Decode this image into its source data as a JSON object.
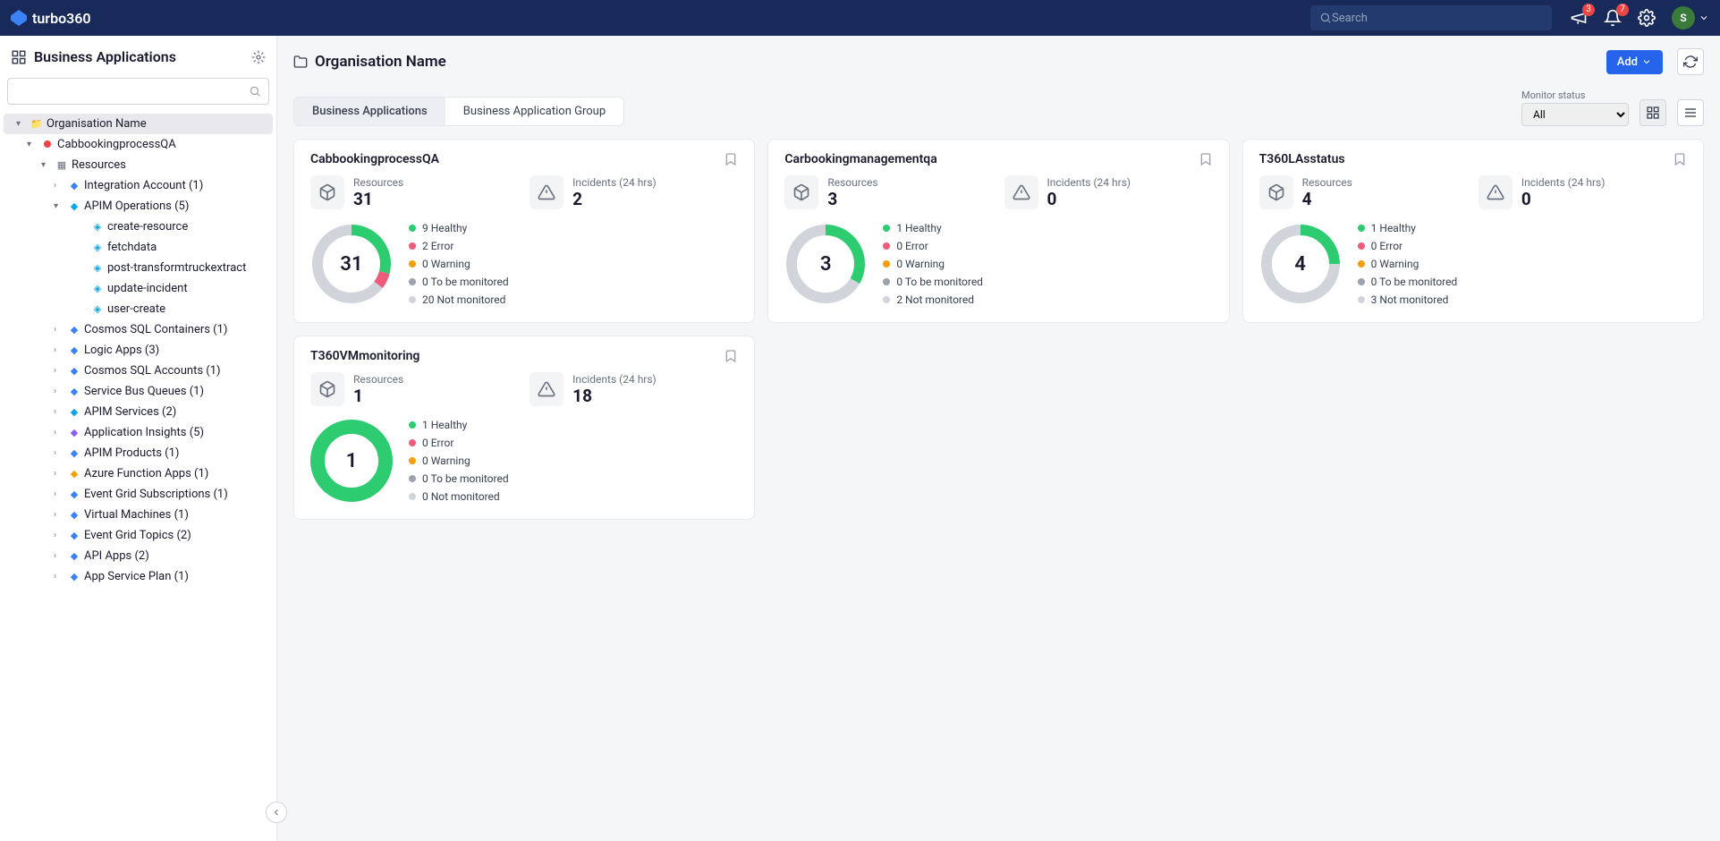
{
  "brand": "turbo360",
  "header": {
    "search_placeholder": "Search",
    "announce_badge": "3",
    "notif_badge": "7",
    "avatar_letter": "S"
  },
  "sidebar": {
    "title": "Business Applications",
    "org": "Organisation Name",
    "app": "CabbookingprocessQA",
    "resources_label": "Resources",
    "items": [
      {
        "label": "Integration Account (1)",
        "icon_color": "#3b82f6"
      },
      {
        "label": "APIM Operations (5)",
        "icon_color": "#0ea5e9",
        "expanded": true,
        "children": [
          {
            "label": "create-resource"
          },
          {
            "label": "fetchdata"
          },
          {
            "label": "post-transformtruckextract"
          },
          {
            "label": "update-incident"
          },
          {
            "label": "user-create"
          }
        ]
      },
      {
        "label": "Cosmos SQL Containers (1)",
        "icon_color": "#3b82f6"
      },
      {
        "label": "Logic Apps (3)",
        "icon_color": "#3b82f6"
      },
      {
        "label": "Cosmos SQL Accounts (1)",
        "icon_color": "#3b82f6"
      },
      {
        "label": "Service Bus Queues (1)",
        "icon_color": "#3b82f6"
      },
      {
        "label": "APIM Services (2)",
        "icon_color": "#0ea5e9"
      },
      {
        "label": "Application Insights (5)",
        "icon_color": "#8b5cf6"
      },
      {
        "label": "APIM Products (1)",
        "icon_color": "#3b82f6"
      },
      {
        "label": "Azure Function Apps (1)",
        "icon_color": "#f59e0b"
      },
      {
        "label": "Event Grid Subscriptions (1)",
        "icon_color": "#3b82f6"
      },
      {
        "label": "Virtual Machines (1)",
        "icon_color": "#3b82f6"
      },
      {
        "label": "Event Grid Topics (2)",
        "icon_color": "#3b82f6"
      },
      {
        "label": "API Apps (2)",
        "icon_color": "#3b82f6"
      },
      {
        "label": "App Service Plan (1)",
        "icon_color": "#3b82f6"
      }
    ]
  },
  "page": {
    "title": "Organisation Name",
    "add_label": "Add",
    "tabs": [
      {
        "label": "Business Applications",
        "active": true
      },
      {
        "label": "Business Application Group",
        "active": false
      }
    ],
    "monitor_status_label": "Monitor status",
    "monitor_status_value": "All"
  },
  "status_colors": {
    "healthy": "#2ecc71",
    "error": "#ef5b7a",
    "warning": "#f59e0b",
    "tobemonitored": "#9ca3af",
    "notmonitored": "#d1d5db"
  },
  "cards": [
    {
      "title": "CabbookingprocessQA",
      "resources_label": "Resources",
      "resources": 31,
      "incidents_label": "Incidents (24 hrs)",
      "incidents": 2,
      "donut_total": 31,
      "donut_thick": true,
      "breakdown": [
        {
          "key": "healthy",
          "label": "9 Healthy",
          "count": 9
        },
        {
          "key": "error",
          "label": "2 Error",
          "count": 2
        },
        {
          "key": "warning",
          "label": "0 Warning",
          "count": 0
        },
        {
          "key": "tobemonitored",
          "label": "0 To be monitored",
          "count": 0
        },
        {
          "key": "notmonitored",
          "label": "20 Not monitored",
          "count": 20
        }
      ]
    },
    {
      "title": "Carbookingmanagementqa",
      "resources_label": "Resources",
      "resources": 3,
      "incidents_label": "Incidents (24 hrs)",
      "incidents": 0,
      "donut_total": 3,
      "donut_thick": true,
      "breakdown": [
        {
          "key": "healthy",
          "label": "1 Healthy",
          "count": 1
        },
        {
          "key": "error",
          "label": "0 Error",
          "count": 0
        },
        {
          "key": "warning",
          "label": "0 Warning",
          "count": 0
        },
        {
          "key": "tobemonitored",
          "label": "0 To be monitored",
          "count": 0
        },
        {
          "key": "notmonitored",
          "label": "2 Not monitored",
          "count": 2
        }
      ]
    },
    {
      "title": "T360LAsstatus",
      "resources_label": "Resources",
      "resources": 4,
      "incidents_label": "Incidents (24 hrs)",
      "incidents": 0,
      "donut_total": 4,
      "donut_thick": true,
      "breakdown": [
        {
          "key": "healthy",
          "label": "1 Healthy",
          "count": 1
        },
        {
          "key": "error",
          "label": "0 Error",
          "count": 0
        },
        {
          "key": "warning",
          "label": "0 Warning",
          "count": 0
        },
        {
          "key": "tobemonitored",
          "label": "0 To be monitored",
          "count": 0
        },
        {
          "key": "notmonitored",
          "label": "3 Not monitored",
          "count": 3
        }
      ]
    },
    {
      "title": "T360VMmonitoring",
      "resources_label": "Resources",
      "resources": 1,
      "incidents_label": "Incidents (24 hrs)",
      "incidents": 18,
      "donut_total": 1,
      "donut_thick": false,
      "breakdown": [
        {
          "key": "healthy",
          "label": "1 Healthy",
          "count": 1
        },
        {
          "key": "error",
          "label": "0 Error",
          "count": 0
        },
        {
          "key": "warning",
          "label": "0 Warning",
          "count": 0
        },
        {
          "key": "tobemonitored",
          "label": "0 To be monitored",
          "count": 0
        },
        {
          "key": "notmonitored",
          "label": "0 Not monitored",
          "count": 0
        }
      ]
    }
  ]
}
